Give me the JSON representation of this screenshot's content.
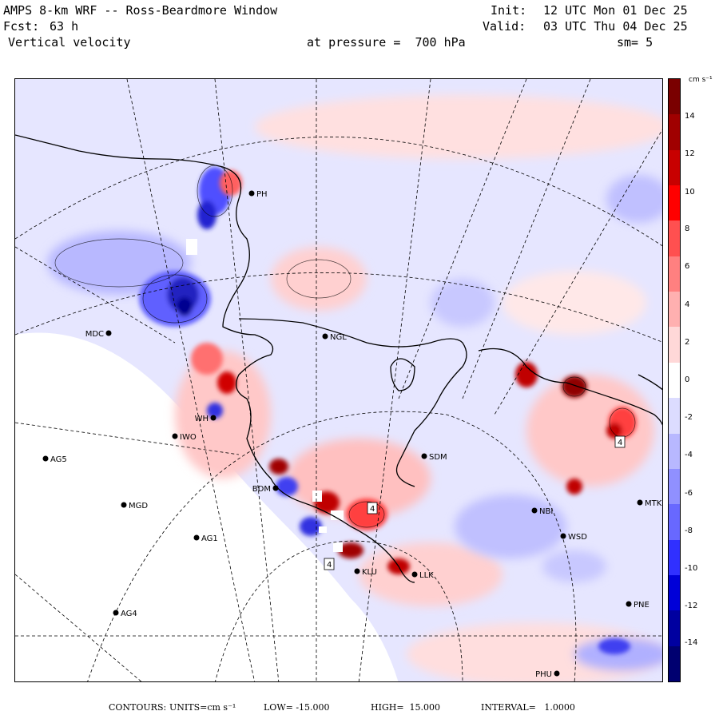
{
  "header": {
    "title": "AMPS 8-km WRF -- Ross-Beardmore Window",
    "fcst_label": "Fcst:",
    "fcst_value": "63 h",
    "field": "Vertical velocity",
    "init_label": "Init:",
    "init_value": "12 UTC Mon 01 Dec 25",
    "valid_label": "Valid:",
    "valid_value": "03 UTC Thu 04 Dec 25",
    "pressure": "at pressure =  700 hPa",
    "smooth": "sm= 5"
  },
  "colorbar": {
    "unit": "cm s⁻¹",
    "ticks": [
      "14",
      "12",
      "10",
      "8",
      "6",
      "4",
      "2",
      "0",
      "-2",
      "-4",
      "-6",
      "-8",
      "-10",
      "-12",
      "-14"
    ],
    "colors": [
      "#7a0000",
      "#a00000",
      "#c80000",
      "#ff0000",
      "#ff5050",
      "#ff8080",
      "#ffb0b0",
      "#ffd8d8",
      "#ffffff",
      "#dcdcff",
      "#b8b8ff",
      "#9090ff",
      "#6868ff",
      "#3030ff",
      "#0000d8",
      "#0000a0",
      "#000070"
    ]
  },
  "stations": [
    {
      "id": "MDC",
      "side": "left"
    },
    {
      "id": "NGL",
      "side": "right"
    },
    {
      "id": "IWO",
      "side": "right"
    },
    {
      "id": "AG5",
      "side": "right"
    },
    {
      "id": "SDM",
      "side": "right"
    },
    {
      "id": "BDM",
      "side": "left"
    },
    {
      "id": "MGD",
      "side": "right"
    },
    {
      "id": "AG1",
      "side": "right"
    },
    {
      "id": "NBI",
      "side": "right"
    },
    {
      "id": "MTK",
      "side": "right"
    },
    {
      "id": "WSD",
      "side": "right"
    },
    {
      "id": "KLU",
      "side": "right"
    },
    {
      "id": "LLK",
      "side": "right"
    },
    {
      "id": "PNE",
      "side": "right"
    },
    {
      "id": "AG4",
      "side": "right"
    },
    {
      "id": "PHU",
      "side": "left"
    },
    {
      "id": "PH",
      "side": "right"
    },
    {
      "id": "WH",
      "side": "left"
    }
  ],
  "map_labels": [
    "4",
    "4",
    "4"
  ],
  "footer": {
    "contours": "CONTOURS:",
    "units": "UNITS=cm s⁻¹",
    "low": "LOW= -15.000",
    "high": "HIGH=  15.000",
    "interval": "INTERVAL=   1.0000"
  }
}
